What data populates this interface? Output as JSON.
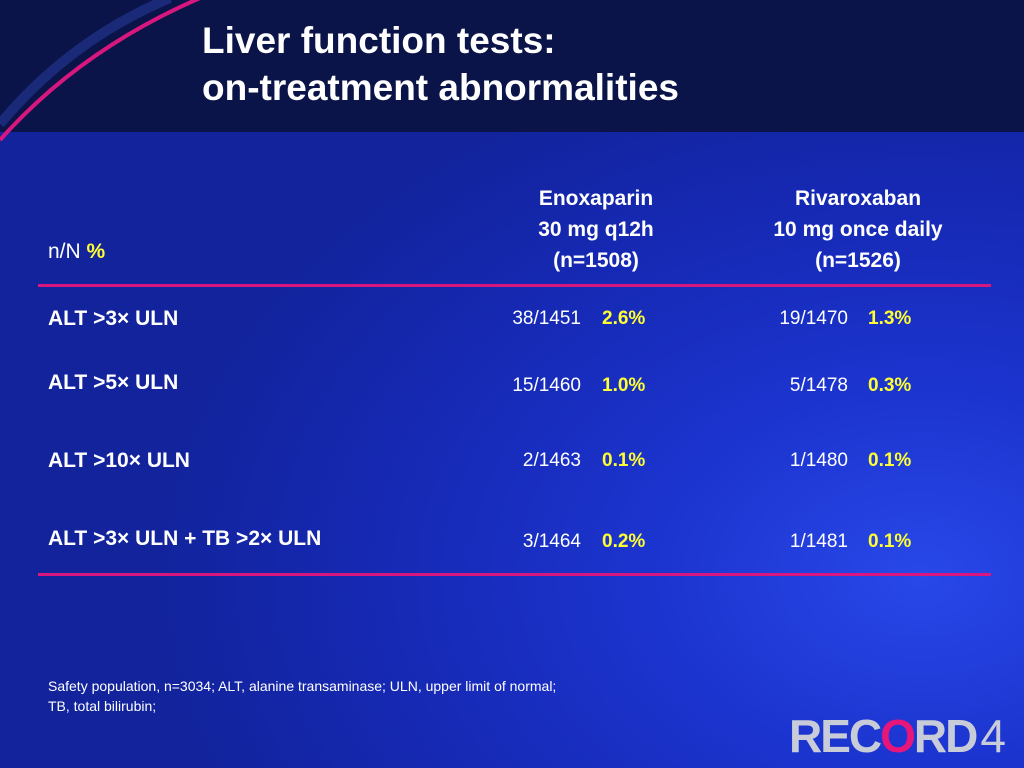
{
  "title": {
    "line1": "Liver function tests:",
    "line2": "on-treatment abnormalities"
  },
  "table": {
    "nn_label": "n/N",
    "pct_label": "%",
    "columns": [
      {
        "line1": "Enoxaparin",
        "line2": "30 mg q12h",
        "line3": "(n=1508)"
      },
      {
        "line1": "Rivaroxaban",
        "line2": "10 mg once daily",
        "line3": "(n=1526)"
      }
    ],
    "rows": [
      {
        "label": "ALT >3× ULN",
        "enox_frac": "38/1451",
        "enox_pct": "2.6%",
        "riva_frac": "19/1470",
        "riva_pct": "1.3%"
      },
      {
        "label": "ALT >5× ULN",
        "enox_frac": "15/1460",
        "enox_pct": "1.0%",
        "riva_frac": "5/1478",
        "riva_pct": "0.3%"
      },
      {
        "label": "ALT >10× ULN",
        "enox_frac": "2/1463",
        "enox_pct": "0.1%",
        "riva_frac": "1/1480",
        "riva_pct": "0.1%"
      },
      {
        "label": "ALT >3× ULN + TB >2× ULN",
        "enox_frac": "3/1464",
        "enox_pct": "0.2%",
        "riva_frac": "1/1481",
        "riva_pct": "0.1%"
      }
    ]
  },
  "footnote": {
    "line1": "Safety population, n=3034; ALT, alanine transaminase; ULN, upper limit of normal;",
    "line2": "TB, total bilirubin;"
  },
  "logo": {
    "text_a": "REC",
    "text_o": "O",
    "text_b": "RD",
    "number": "4"
  },
  "colors": {
    "header_bg": "#0a1448",
    "accent_rule": "#d8177e",
    "highlight": "#ffff33"
  }
}
